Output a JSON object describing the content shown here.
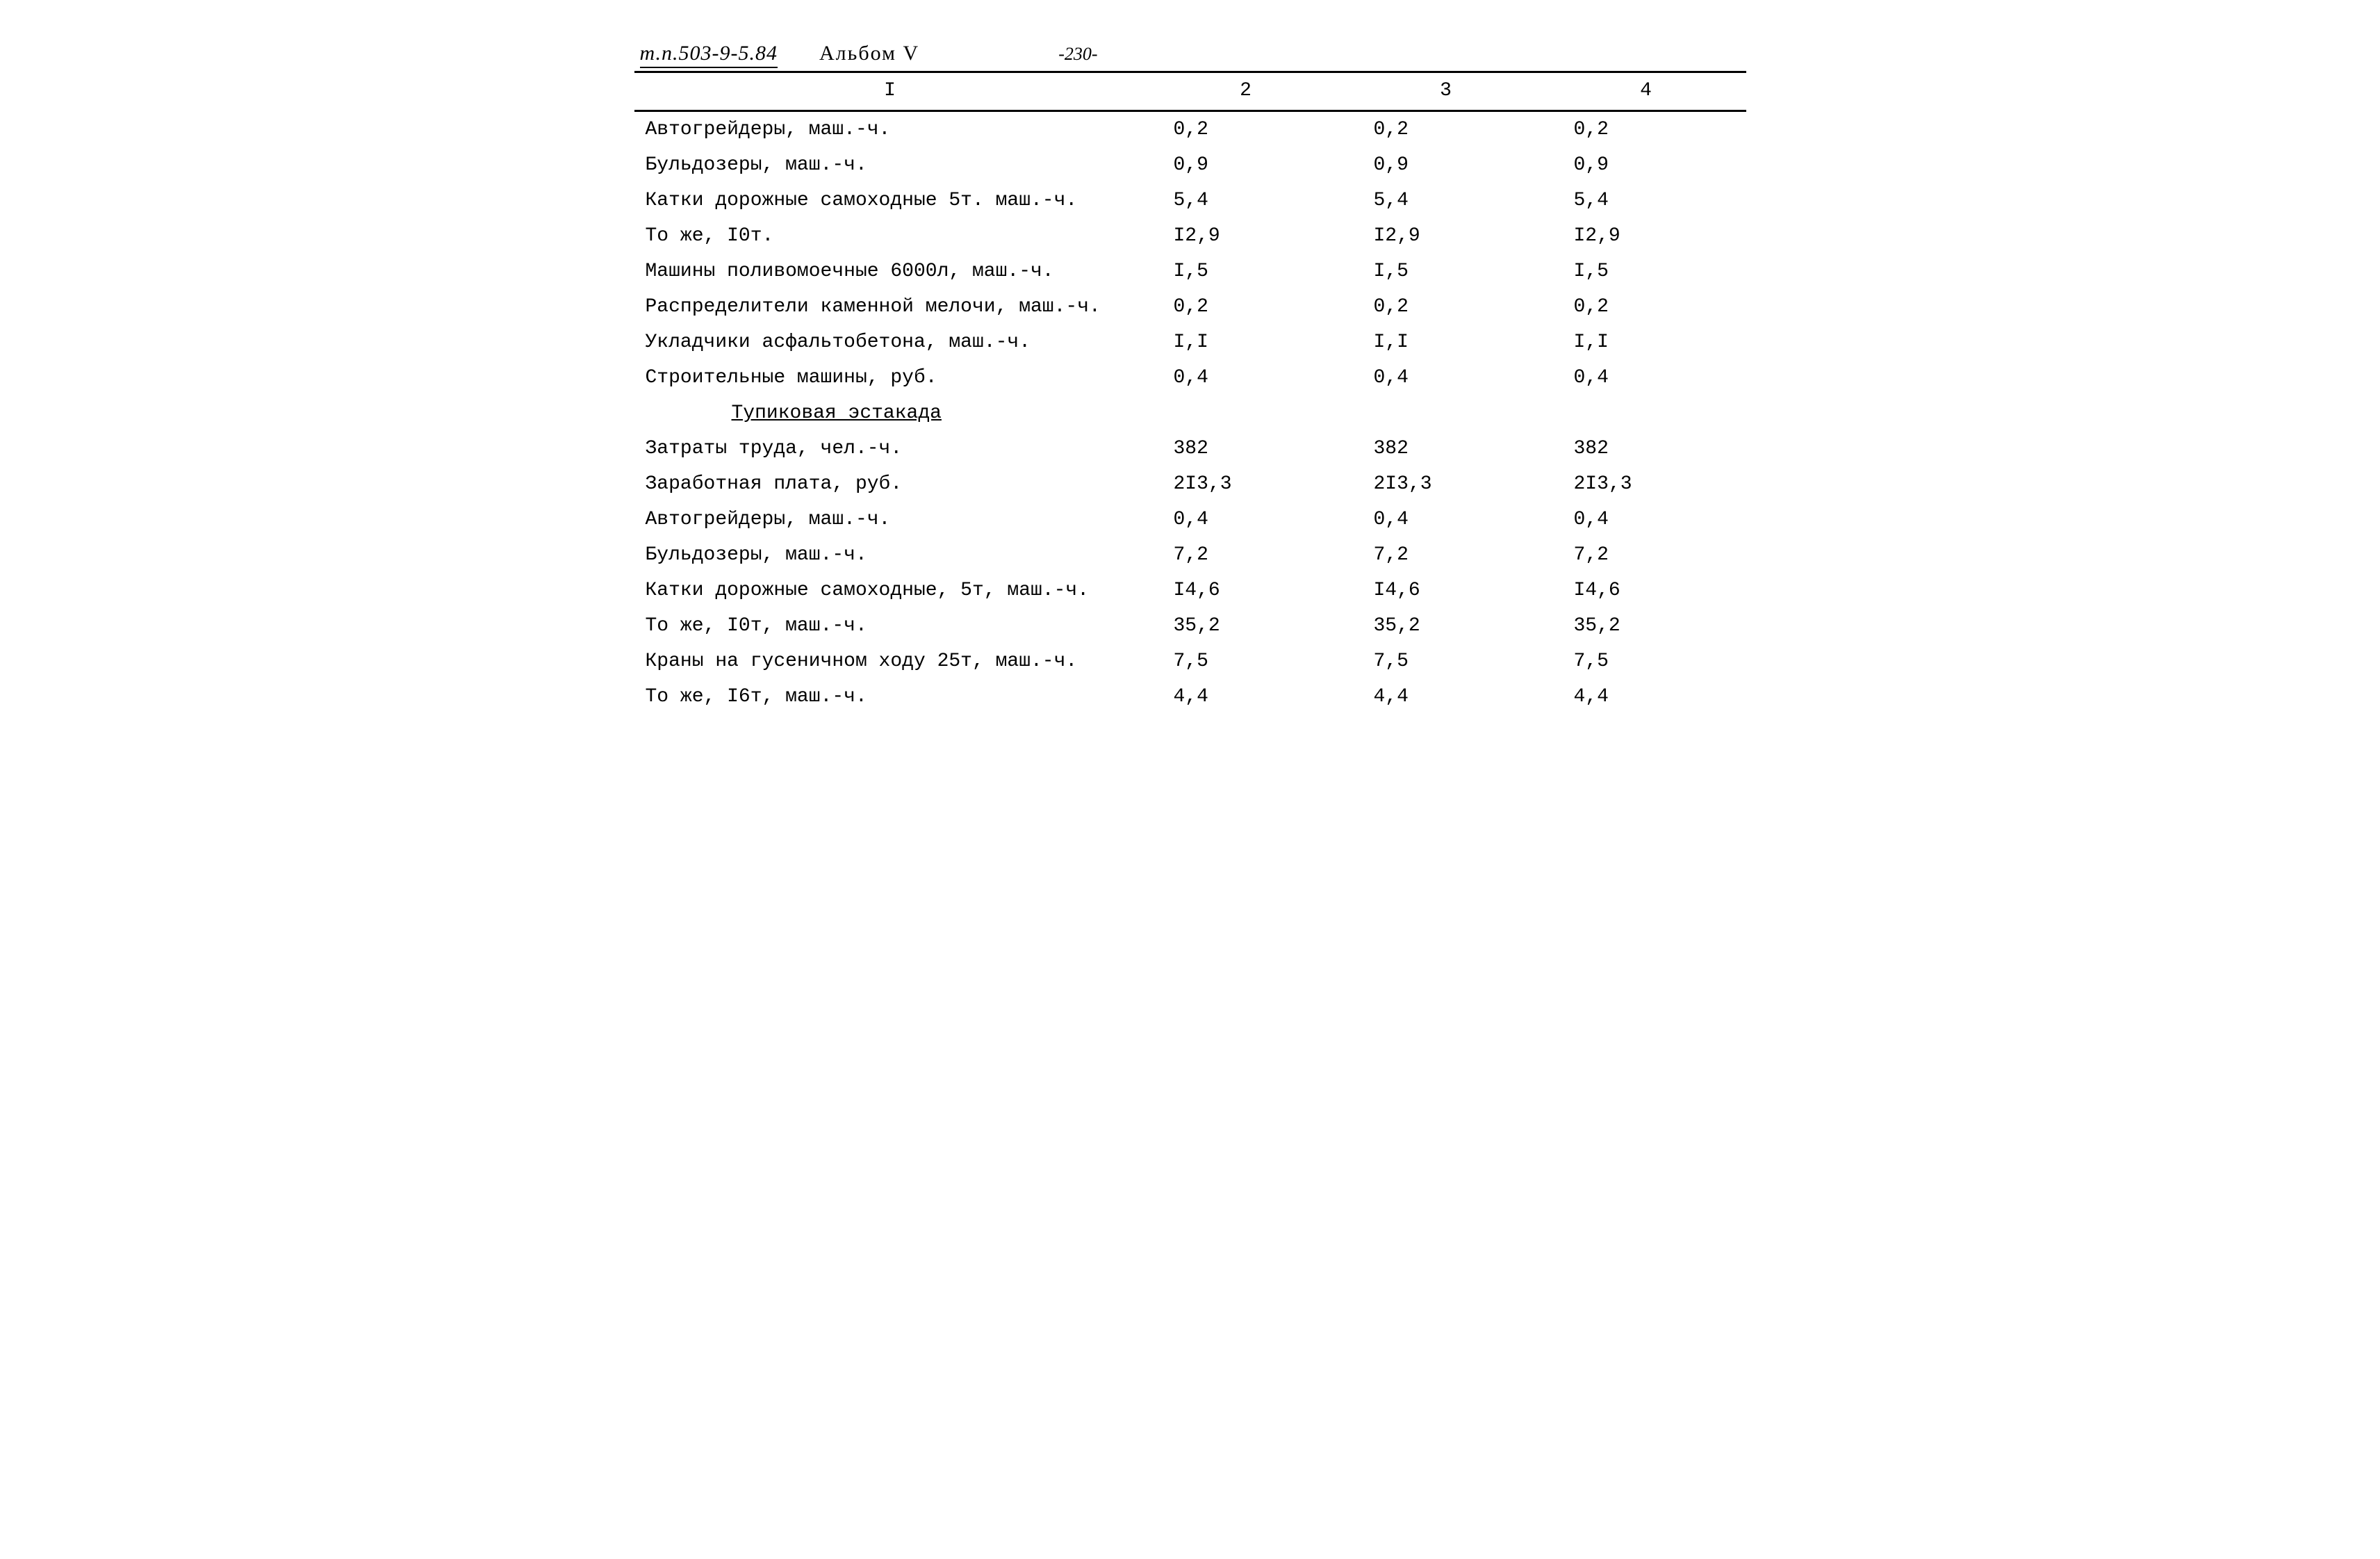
{
  "header": {
    "doc_code": "т.п.503-9-5.84",
    "album": "Альбом V",
    "page_number": "-230-"
  },
  "table": {
    "columns": [
      "I",
      "2",
      "3",
      "4"
    ],
    "rows": [
      {
        "type": "data",
        "label": "Автогрейдеры, маш.-ч.",
        "c2": "0,2",
        "c3": "0,2",
        "c4": "0,2"
      },
      {
        "type": "data",
        "label": "Бульдозеры, маш.-ч.",
        "c2": "0,9",
        "c3": "0,9",
        "c4": "0,9"
      },
      {
        "type": "data",
        "label": "Катки дорожные самоходные 5т. маш.-ч.",
        "c2": "5,4",
        "c3": "5,4",
        "c4": "5,4"
      },
      {
        "type": "data",
        "label": "То же, I0т.",
        "c2": "I2,9",
        "c3": "I2,9",
        "c4": "I2,9"
      },
      {
        "type": "data",
        "label": "Машины поливомоечные 6000л, маш.-ч.",
        "c2": "I,5",
        "c3": "I,5",
        "c4": "I,5"
      },
      {
        "type": "data",
        "label": "Распределители каменной мелочи, маш.-ч.",
        "c2": "0,2",
        "c3": "0,2",
        "c4": "0,2"
      },
      {
        "type": "data",
        "label": "Укладчики асфальтобетона, маш.-ч.",
        "c2": "I,I",
        "c3": "I,I",
        "c4": "I,I"
      },
      {
        "type": "data",
        "label": "Строительные машины, руб.",
        "c2": "0,4",
        "c3": "0,4",
        "c4": "0,4"
      },
      {
        "type": "section",
        "label": "Тупиковая эстакада"
      },
      {
        "type": "data",
        "label": "Затраты труда, чел.-ч.",
        "c2": "382",
        "c3": "382",
        "c4": "382"
      },
      {
        "type": "data",
        "label": "Заработная плата, руб.",
        "c2": "2I3,3",
        "c3": "2I3,3",
        "c4": "2I3,3"
      },
      {
        "type": "data",
        "label": "Автогрейдеры, маш.-ч.",
        "c2": "0,4",
        "c3": "0,4",
        "c4": "0,4"
      },
      {
        "type": "data",
        "label": "Бульдозеры, маш.-ч.",
        "c2": "7,2",
        "c3": "7,2",
        "c4": "7,2"
      },
      {
        "type": "data",
        "label": "Катки дорожные самоходные, 5т, маш.-ч.",
        "c2": "I4,6",
        "c3": "I4,6",
        "c4": "I4,6"
      },
      {
        "type": "data",
        "label": "То же, I0т, маш.-ч.",
        "c2": "35,2",
        "c3": "35,2",
        "c4": "35,2"
      },
      {
        "type": "data",
        "label": "Краны на гусеничном ходу 25т, маш.-ч.",
        "c2": "7,5",
        "c3": "7,5",
        "c4": "7,5"
      },
      {
        "type": "data",
        "label": "То же, I6т, маш.-ч.",
        "c2": "4,4",
        "c3": "4,4",
        "c4": "4,4"
      }
    ]
  }
}
